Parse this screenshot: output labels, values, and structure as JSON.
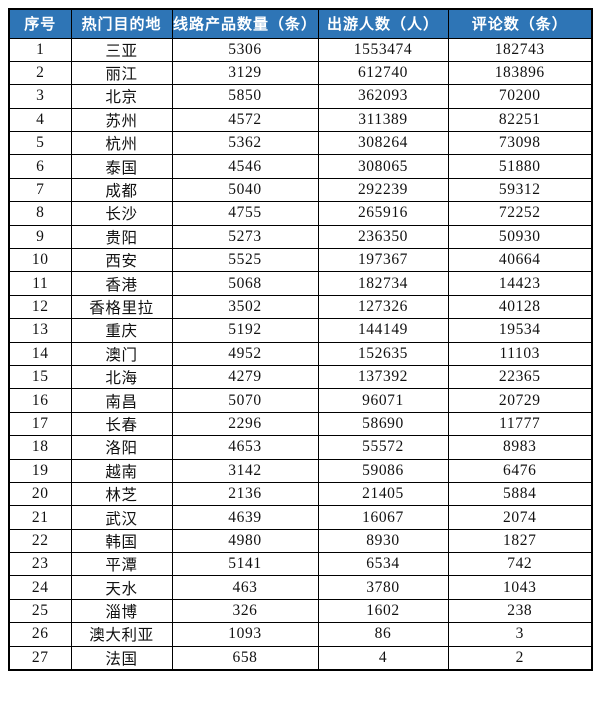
{
  "colors": {
    "header_bg": "#2E75B6",
    "header_text": "#FFFFFF",
    "border": "#000000",
    "body_text": "#111111",
    "page_bg": "#FFFFFF"
  },
  "chart_data": {
    "type": "table",
    "title": "",
    "columns": [
      "序号",
      "热门目的地",
      "线路产品数量（条）",
      "出游人数（人）",
      "评论数（条）"
    ],
    "rows": [
      [
        "1",
        "三亚",
        "5306",
        "1553474",
        "182743"
      ],
      [
        "2",
        "丽江",
        "3129",
        "612740",
        "183896"
      ],
      [
        "3",
        "北京",
        "5850",
        "362093",
        "70200"
      ],
      [
        "4",
        "苏州",
        "4572",
        "311389",
        "82251"
      ],
      [
        "5",
        "杭州",
        "5362",
        "308264",
        "73098"
      ],
      [
        "6",
        "泰国",
        "4546",
        "308065",
        "51880"
      ],
      [
        "7",
        "成都",
        "5040",
        "292239",
        "59312"
      ],
      [
        "8",
        "长沙",
        "4755",
        "265916",
        "72252"
      ],
      [
        "9",
        "贵阳",
        "5273",
        "236350",
        "50930"
      ],
      [
        "10",
        "西安",
        "5525",
        "197367",
        "40664"
      ],
      [
        "11",
        "香港",
        "5068",
        "182734",
        "14423"
      ],
      [
        "12",
        "香格里拉",
        "3502",
        "127326",
        "40128"
      ],
      [
        "13",
        "重庆",
        "5192",
        "144149",
        "19534"
      ],
      [
        "14",
        "澳门",
        "4952",
        "152635",
        "11103"
      ],
      [
        "15",
        "北海",
        "4279",
        "137392",
        "22365"
      ],
      [
        "16",
        "南昌",
        "5070",
        "96071",
        "20729"
      ],
      [
        "17",
        "长春",
        "2296",
        "58690",
        "11777"
      ],
      [
        "18",
        "洛阳",
        "4653",
        "55572",
        "8983"
      ],
      [
        "19",
        "越南",
        "3142",
        "59086",
        "6476"
      ],
      [
        "20",
        "林芝",
        "2136",
        "21405",
        "5884"
      ],
      [
        "21",
        "武汉",
        "4639",
        "16067",
        "2074"
      ],
      [
        "22",
        "韩国",
        "4980",
        "8930",
        "1827"
      ],
      [
        "23",
        "平潭",
        "5141",
        "6534",
        "742"
      ],
      [
        "24",
        "天水",
        "463",
        "3780",
        "1043"
      ],
      [
        "25",
        "淄博",
        "326",
        "1602",
        "238"
      ],
      [
        "26",
        "澳大利亚",
        "1093",
        "86",
        "3"
      ],
      [
        "27",
        "法国",
        "658",
        "4",
        "2"
      ]
    ]
  }
}
